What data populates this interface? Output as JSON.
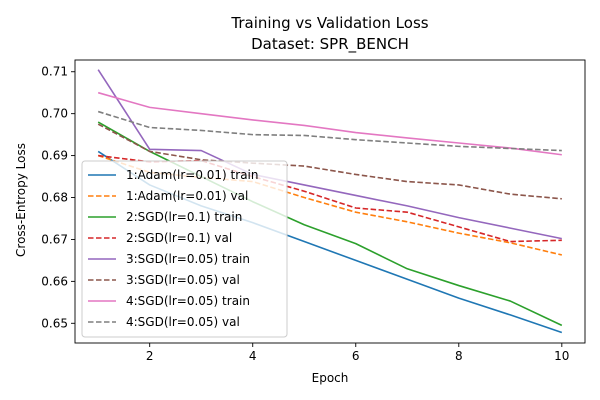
{
  "chart_data": {
    "type": "line",
    "title_line1": "Training vs Validation Loss",
    "title_line2": "Dataset: SPR_BENCH",
    "xlabel": "Epoch",
    "ylabel": "Cross-Entropy Loss",
    "xlim": [
      0.55,
      10.45
    ],
    "ylim": [
      0.6453,
      0.7128
    ],
    "xticks": [
      2,
      4,
      6,
      8,
      10
    ],
    "yticks": [
      0.65,
      0.66,
      0.67,
      0.68,
      0.69,
      0.7,
      0.71
    ],
    "grid": false,
    "legend_position": "lower-left",
    "x": [
      1,
      2,
      3,
      4,
      5,
      6,
      7,
      8,
      9,
      10
    ],
    "series": [
      {
        "name": "1:Adam(lr=0.01) train",
        "color": "#1f77b4",
        "dash": "solid",
        "values": [
          0.691,
          0.683,
          0.678,
          0.674,
          0.6695,
          0.665,
          0.6605,
          0.656,
          0.652,
          0.6478
        ]
      },
      {
        "name": "1:Adam(lr=0.01) val",
        "color": "#ff7f0e",
        "dash": "dashed",
        "values": [
          0.69,
          0.686,
          0.6848,
          0.6838,
          0.68,
          0.6765,
          0.6742,
          0.6715,
          0.6692,
          0.6663
        ]
      },
      {
        "name": "2:SGD(lr=0.1) train",
        "color": "#2ca02c",
        "dash": "solid",
        "values": [
          0.698,
          0.691,
          0.685,
          0.679,
          0.6735,
          0.669,
          0.663,
          0.659,
          0.6553,
          0.6495
        ]
      },
      {
        "name": "2:SGD(lr=0.1) val",
        "color": "#d62728",
        "dash": "dashed",
        "values": [
          0.69,
          0.6885,
          0.6888,
          0.685,
          0.6815,
          0.6775,
          0.6765,
          0.673,
          0.6695,
          0.6698
        ]
      },
      {
        "name": "3:SGD(lr=0.05) train",
        "color": "#9467bd",
        "dash": "solid",
        "values": [
          0.7105,
          0.6915,
          0.6912,
          0.6855,
          0.683,
          0.6805,
          0.678,
          0.6752,
          0.6727,
          0.6702
        ]
      },
      {
        "name": "3:SGD(lr=0.05) val",
        "color": "#8c564b",
        "dash": "dashed",
        "values": [
          0.6975,
          0.691,
          0.689,
          0.6882,
          0.6875,
          0.6855,
          0.6838,
          0.683,
          0.6808,
          0.6797
        ]
      },
      {
        "name": "4:SGD(lr=0.05) train",
        "color": "#e377c2",
        "dash": "solid",
        "values": [
          0.705,
          0.7015,
          0.7,
          0.6985,
          0.6972,
          0.6955,
          0.6942,
          0.693,
          0.6918,
          0.6902
        ]
      },
      {
        "name": "4:SGD(lr=0.05) val",
        "color": "#7f7f7f",
        "dash": "dashed",
        "values": [
          0.7005,
          0.6967,
          0.696,
          0.695,
          0.6948,
          0.6938,
          0.693,
          0.6922,
          0.6917,
          0.6912
        ]
      }
    ]
  }
}
